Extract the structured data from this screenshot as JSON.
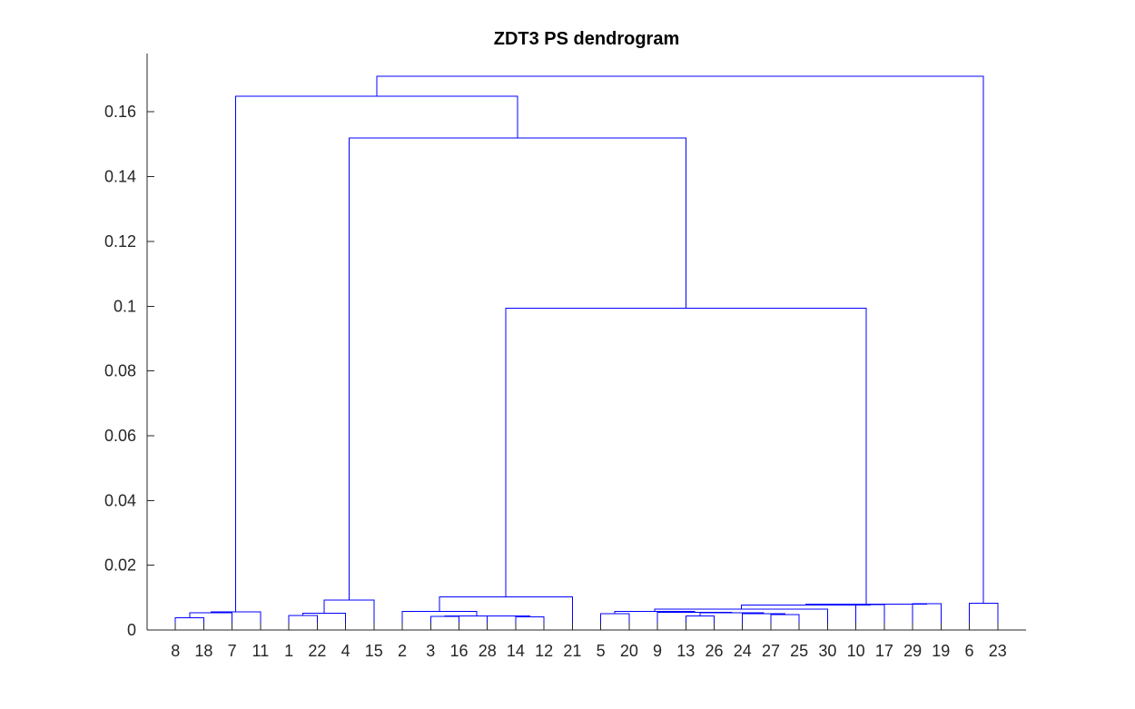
{
  "chart_data": {
    "type": "dendrogram",
    "title": "ZDT3 PS dendrogram",
    "xlabel": "",
    "ylabel": "",
    "ylim": [
      0,
      0.178
    ],
    "yticks": [
      0,
      0.02,
      0.04,
      0.06,
      0.08,
      0.1,
      0.12,
      0.14,
      0.16
    ],
    "ytick_labels": [
      "0",
      "0.02",
      "0.04",
      "0.06",
      "0.08",
      "0.1",
      "0.12",
      "0.14",
      "0.16"
    ],
    "grid": false,
    "color": "#0000ff",
    "leaf_order": [
      8,
      18,
      7,
      11,
      1,
      22,
      4,
      15,
      2,
      3,
      16,
      28,
      14,
      12,
      21,
      5,
      20,
      9,
      13,
      26,
      24,
      27,
      25,
      30,
      10,
      17,
      29,
      19,
      6,
      23
    ],
    "merges": [
      {
        "left": "8",
        "right": "18",
        "height": 0.0038
      },
      {
        "left": "(8,18)",
        "right": "7",
        "height": 0.0053
      },
      {
        "left": "((8,18),7)",
        "right": "11",
        "height": 0.0056
      },
      {
        "left": "1",
        "right": "22",
        "height": 0.0045
      },
      {
        "left": "(1,22)",
        "right": "4",
        "height": 0.0052
      },
      {
        "left": "((1,22),4)",
        "right": "15",
        "height": 0.0092
      },
      {
        "left": "3",
        "right": "16",
        "height": 0.0042
      },
      {
        "left": "14",
        "right": "12",
        "height": 0.0041
      },
      {
        "left": "28",
        "right": "(14,12)",
        "height": 0.0043
      },
      {
        "left": "(3,16)",
        "right": "(28,(14,12))",
        "height": 0.0044
      },
      {
        "left": "2",
        "right": "((3,16),(28,(14,12)))",
        "height": 0.0057
      },
      {
        "left": "(2,...)",
        "right": "21",
        "height": 0.0103
      },
      {
        "left": "5",
        "right": "20",
        "height": 0.005
      },
      {
        "left": "13",
        "right": "26",
        "height": 0.0043
      },
      {
        "left": "27",
        "right": "25",
        "height": 0.0048
      },
      {
        "left": "24",
        "right": "(27,25)",
        "height": 0.005
      },
      {
        "left": "(13,26)",
        "right": "(24,(27,25))",
        "height": 0.0053
      },
      {
        "left": "9",
        "right": "((13,26),(24,(27,25)))",
        "height": 0.0055
      },
      {
        "left": "(5,20)",
        "right": "(9,...)",
        "height": 0.0058
      },
      {
        "left": "((5,20),(9,...))",
        "right": "30",
        "height": 0.0065
      },
      {
        "left": "10",
        "right": "17",
        "height": 0.0079
      },
      {
        "left": "(...,30)",
        "right": "(10,17)",
        "height": 0.0077
      },
      {
        "left": "(...)",
        "right": "(29,19)",
        "height": 0.008
      },
      {
        "left": "29",
        "right": "19",
        "height": 0.0081
      },
      {
        "left": "(2-group)",
        "right": "(5-group)",
        "height": 0.0994
      },
      {
        "left": "(1-group)",
        "right": "(2..19)",
        "height": 0.152
      },
      {
        "left": "(8-group)",
        "right": "(1..19)",
        "height": 0.1648
      },
      {
        "left": "6",
        "right": "23",
        "height": 0.0083
      },
      {
        "left": "(8..19)",
        "right": "(6,23)",
        "height": 0.171
      }
    ]
  }
}
